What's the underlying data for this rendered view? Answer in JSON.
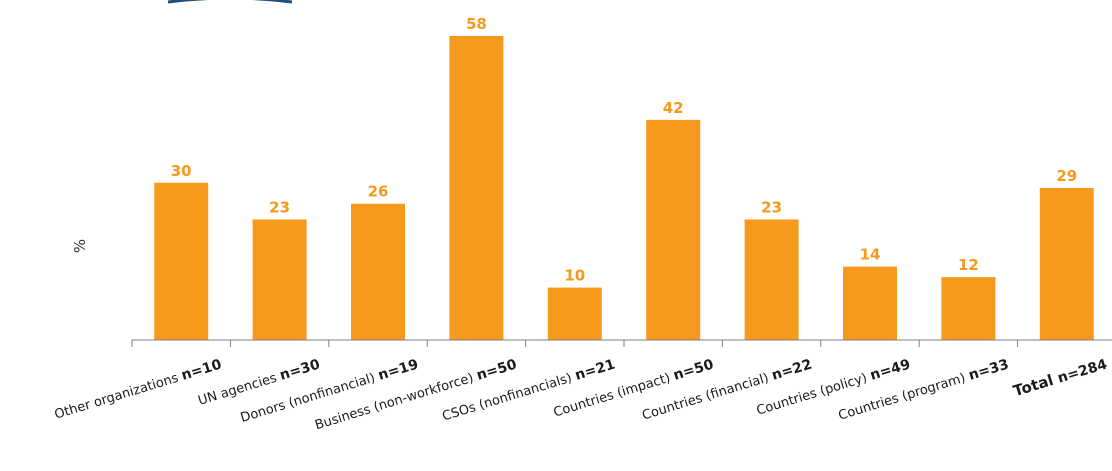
{
  "colors": {
    "bar": "#f7991c",
    "axis": "#7f7f7f",
    "label": "#f7991c",
    "header_fragment": "#1f4e79"
  },
  "chart_data": {
    "type": "bar",
    "ylabel": "%",
    "ylim": [
      0,
      60
    ],
    "grid": false,
    "categories": [
      {
        "label": "Other organizations",
        "n": "n=10"
      },
      {
        "label": "UN agencies",
        "n": "n=30"
      },
      {
        "label": "Donors (nonfinancial)",
        "n": "n=19"
      },
      {
        "label": "Business (non-workforce)",
        "n": "n=50"
      },
      {
        "label": "CSOs (nonfinancials)",
        "n": "n=21"
      },
      {
        "label": "Countries (impact)",
        "n": "n=50"
      },
      {
        "label": "Countries (financial)",
        "n": "n=22"
      },
      {
        "label": "Countries (policy)",
        "n": "n=49"
      },
      {
        "label": "Countries (program)",
        "n": "n=33"
      },
      {
        "label": "Total",
        "n": "n=284",
        "bold": true
      }
    ],
    "values": [
      30,
      23,
      26,
      58,
      10,
      42,
      23,
      14,
      12,
      29
    ]
  }
}
